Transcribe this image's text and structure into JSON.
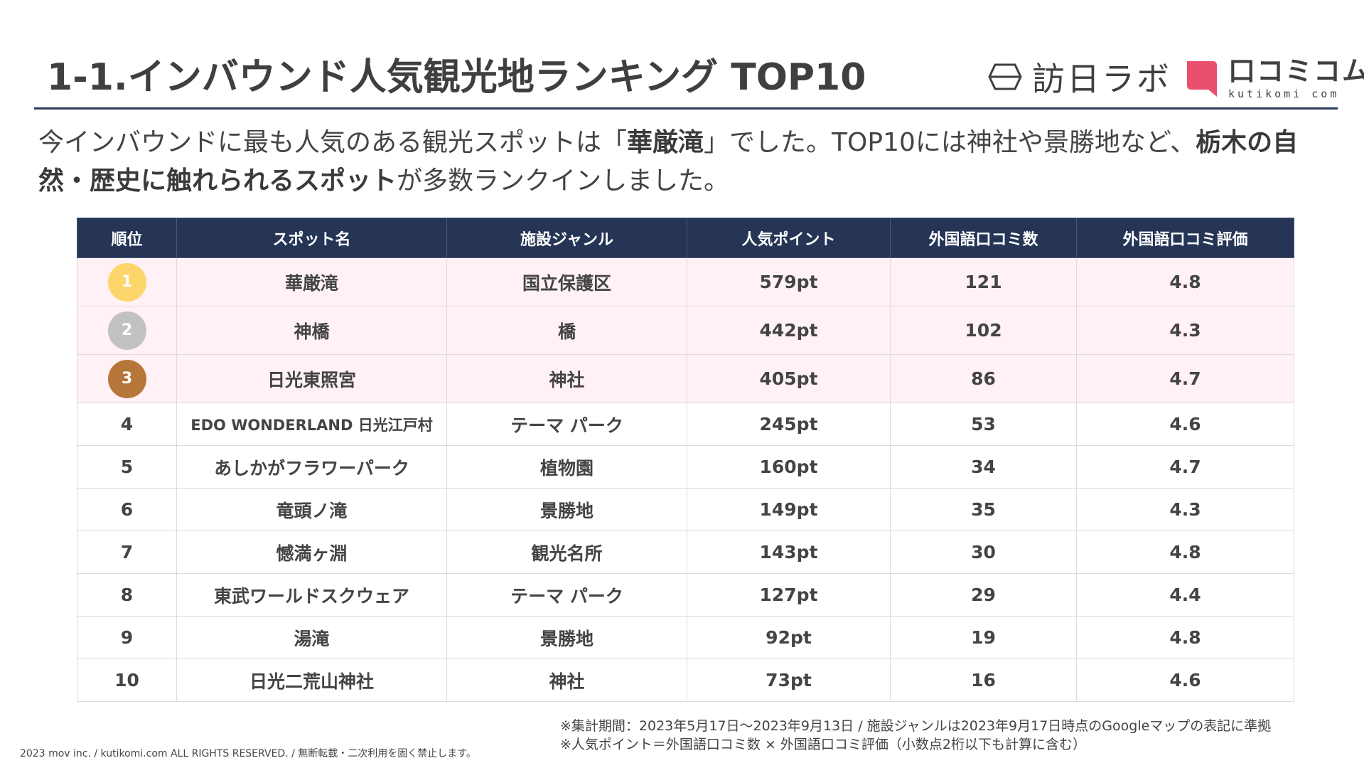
{
  "header": {
    "title": "1-1.インバウンド人気観光地ランキング TOP10",
    "logo_houjitsu": "訪日ラボ",
    "logo_kutikomi_main": "口コミコム",
    "logo_kutikomi_sub": "kutikomi com",
    "logo_kutikomi_color": "#e8506e"
  },
  "lead": {
    "p1": "今インバウンドに最も人気のある観光スポットは「",
    "b1": "華厳滝",
    "p2": "」でした。TOP10には神社や景勝地など、",
    "b2": "栃木の自然・歴史に触れられるスポット",
    "p3": "が多数ランクインしました。"
  },
  "table": {
    "headers": [
      "順位",
      "スポット名",
      "施設ジャンル",
      "人気ポイント",
      "外国語口コミ数",
      "外国語口コミ評価"
    ],
    "medal_colors": [
      "#fcd66a",
      "#c2c2c2",
      "#b7763a"
    ],
    "rows": [
      {
        "rank": "1",
        "spot": "華厳滝",
        "genre": "国立保護区",
        "points": "579pt",
        "reviews": "121",
        "rating": "4.8"
      },
      {
        "rank": "2",
        "spot": "神橋",
        "genre": "橋",
        "points": "442pt",
        "reviews": "102",
        "rating": "4.3"
      },
      {
        "rank": "3",
        "spot": "日光東照宮",
        "genre": "神社",
        "points": "405pt",
        "reviews": "86",
        "rating": "4.7"
      },
      {
        "rank": "4",
        "spot": "EDO WONDERLAND 日光江戸村",
        "genre": "テーマ パーク",
        "points": "245pt",
        "reviews": "53",
        "rating": "4.6"
      },
      {
        "rank": "5",
        "spot": "あしかがフラワーパーク",
        "genre": "植物園",
        "points": "160pt",
        "reviews": "34",
        "rating": "4.7"
      },
      {
        "rank": "6",
        "spot": "竜頭ノ滝",
        "genre": "景勝地",
        "points": "149pt",
        "reviews": "35",
        "rating": "4.3"
      },
      {
        "rank": "7",
        "spot": "憾満ヶ淵",
        "genre": "観光名所",
        "points": "143pt",
        "reviews": "30",
        "rating": "4.8"
      },
      {
        "rank": "8",
        "spot": "東武ワールドスクウェア",
        "genre": "テーマ パーク",
        "points": "127pt",
        "reviews": "29",
        "rating": "4.4"
      },
      {
        "rank": "9",
        "spot": "湯滝",
        "genre": "景勝地",
        "points": "92pt",
        "reviews": "19",
        "rating": "4.8"
      },
      {
        "rank": "10",
        "spot": "日光二荒山神社",
        "genre": "神社",
        "points": "73pt",
        "reviews": "16",
        "rating": "4.6"
      }
    ]
  },
  "notes": {
    "line1": "※集計期間：2023年5月17日〜2023年9月13日 / 施設ジャンルは2023年9月17日時点のGoogleマップの表記に準拠",
    "line2": "※人気ポイント＝外国語口コミ数 × 外国語口コミ評価（小数点2桁以下も計算に含む）"
  },
  "footer": {
    "copyright": "2023 mov inc. / kutikomi.com ALL RIGHTS RESERVED. / 無断転載・二次利用を固く禁止します。"
  }
}
